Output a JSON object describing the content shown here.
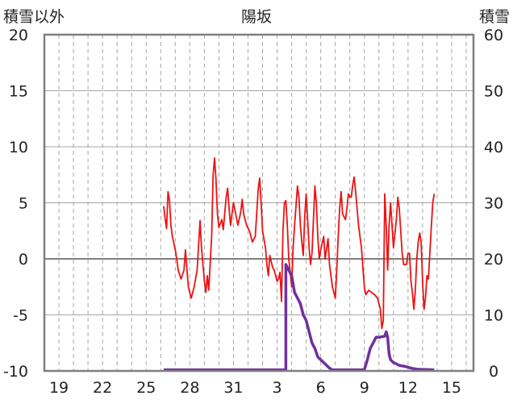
{
  "chart_data": {
    "type": "line",
    "title": "陽坂",
    "left_axis": {
      "label": "積雪以外",
      "range": [
        -10,
        20
      ],
      "ticks": [
        "20",
        "15",
        "10",
        "5",
        "0",
        "-5",
        "-10"
      ]
    },
    "right_axis": {
      "label": "積雪",
      "range": [
        0,
        60
      ],
      "ticks": [
        "60",
        "50",
        "40",
        "30",
        "20",
        "10",
        "0"
      ]
    },
    "x_ticks": [
      "19",
      "22",
      "25",
      "28",
      "31",
      "3",
      "6",
      "9",
      "12",
      "15"
    ],
    "x_tick_positions": [
      1,
      4,
      7,
      10,
      13,
      16,
      19,
      22,
      25,
      28
    ],
    "x_range": [
      0,
      29.5
    ],
    "grid": true,
    "series": [
      {
        "axis": "left",
        "color": "#ee1111",
        "points": [
          [
            8.2,
            4.7
          ],
          [
            8.3,
            3.6
          ],
          [
            8.4,
            2.7
          ],
          [
            8.5,
            6.0
          ],
          [
            8.6,
            5.2
          ],
          [
            8.7,
            3.0
          ],
          [
            8.8,
            2.0
          ],
          [
            9.0,
            0.8
          ],
          [
            9.1,
            0.0
          ],
          [
            9.2,
            -1.0
          ],
          [
            9.4,
            -1.8
          ],
          [
            9.6,
            -1.0
          ],
          [
            9.7,
            0.8
          ],
          [
            9.9,
            -2.5
          ],
          [
            10.1,
            -3.5
          ],
          [
            10.3,
            -2.5
          ],
          [
            10.5,
            -1.0
          ],
          [
            10.7,
            3.4
          ],
          [
            10.8,
            1.0
          ],
          [
            11.0,
            -2.0
          ],
          [
            11.1,
            -3.0
          ],
          [
            11.2,
            -1.5
          ],
          [
            11.3,
            -2.8
          ],
          [
            11.5,
            2.0
          ],
          [
            11.6,
            7.5
          ],
          [
            11.7,
            9.0
          ],
          [
            11.8,
            7.0
          ],
          [
            11.9,
            4.0
          ],
          [
            12.0,
            2.8
          ],
          [
            12.2,
            3.5
          ],
          [
            12.3,
            2.6
          ],
          [
            12.5,
            5.5
          ],
          [
            12.6,
            6.3
          ],
          [
            12.7,
            4.5
          ],
          [
            12.8,
            3.0
          ],
          [
            13.0,
            5.0
          ],
          [
            13.1,
            4.4
          ],
          [
            13.3,
            3.0
          ],
          [
            13.5,
            4.2
          ],
          [
            13.6,
            5.3
          ],
          [
            13.7,
            4.0
          ],
          [
            13.9,
            3.0
          ],
          [
            14.1,
            2.5
          ],
          [
            14.3,
            1.5
          ],
          [
            14.5,
            2.0
          ],
          [
            14.7,
            6.2
          ],
          [
            14.8,
            7.2
          ],
          [
            14.9,
            5.0
          ],
          [
            15.0,
            2.5
          ],
          [
            15.2,
            1.0
          ],
          [
            15.3,
            -0.5
          ],
          [
            15.4,
            -1.5
          ],
          [
            15.5,
            0.3
          ],
          [
            15.7,
            -0.8
          ],
          [
            15.8,
            -1.0
          ],
          [
            16.0,
            -2.0
          ],
          [
            16.1,
            -1.8
          ],
          [
            16.2,
            -1.2
          ],
          [
            16.3,
            -3.8
          ],
          [
            16.4,
            2.5
          ],
          [
            16.5,
            5.0
          ],
          [
            16.6,
            5.2
          ],
          [
            16.7,
            3.0
          ],
          [
            16.8,
            0.0
          ],
          [
            16.9,
            -1.2
          ],
          [
            17.0,
            -2.5
          ],
          [
            17.1,
            1.0
          ],
          [
            17.2,
            3.0
          ],
          [
            17.4,
            6.5
          ],
          [
            17.5,
            5.5
          ],
          [
            17.6,
            3.0
          ],
          [
            17.7,
            1.5
          ],
          [
            17.8,
            0.3
          ],
          [
            17.9,
            3.8
          ],
          [
            18.0,
            5.8
          ],
          [
            18.1,
            3.5
          ],
          [
            18.2,
            1.0
          ],
          [
            18.3,
            -0.5
          ],
          [
            18.4,
            0.5
          ],
          [
            18.5,
            3.5
          ],
          [
            18.6,
            6.5
          ],
          [
            18.7,
            5.0
          ],
          [
            18.8,
            2.0
          ],
          [
            18.9,
            0.0
          ],
          [
            19.0,
            0.8
          ],
          [
            19.2,
            2.0
          ],
          [
            19.3,
            0.0
          ],
          [
            19.5,
            1.8
          ],
          [
            19.6,
            -0.5
          ],
          [
            19.8,
            -2.5
          ],
          [
            20.0,
            -3.5
          ],
          [
            20.1,
            -1.0
          ],
          [
            20.2,
            2.0
          ],
          [
            20.3,
            4.5
          ],
          [
            20.4,
            6.0
          ],
          [
            20.5,
            4.0
          ],
          [
            20.7,
            3.5
          ],
          [
            20.8,
            4.5
          ],
          [
            20.9,
            5.8
          ],
          [
            21.0,
            5.5
          ],
          [
            21.1,
            5.5
          ],
          [
            21.2,
            6.6
          ],
          [
            21.3,
            7.3
          ],
          [
            21.4,
            6.0
          ],
          [
            21.6,
            3.0
          ],
          [
            21.8,
            1.0
          ],
          [
            22.0,
            -2.5
          ],
          [
            22.1,
            -3.2
          ],
          [
            22.3,
            -2.8
          ],
          [
            22.5,
            -3.0
          ],
          [
            22.7,
            -3.2
          ],
          [
            22.9,
            -3.5
          ],
          [
            23.1,
            -4.5
          ],
          [
            23.2,
            -6.2
          ],
          [
            23.3,
            -5.5
          ],
          [
            23.4,
            5.8
          ],
          [
            23.5,
            3.0
          ],
          [
            23.6,
            -1.0
          ],
          [
            23.7,
            3.0
          ],
          [
            23.8,
            5.0
          ],
          [
            23.9,
            3.0
          ],
          [
            24.0,
            1.0
          ],
          [
            24.2,
            3.5
          ],
          [
            24.3,
            5.5
          ],
          [
            24.4,
            4.5
          ],
          [
            24.5,
            2.5
          ],
          [
            24.6,
            0.5
          ],
          [
            24.7,
            -0.5
          ],
          [
            24.9,
            -0.5
          ],
          [
            25.0,
            0.5
          ],
          [
            25.1,
            0.5
          ],
          [
            25.2,
            -2.0
          ],
          [
            25.3,
            -3.0
          ],
          [
            25.4,
            -4.5
          ],
          [
            25.5,
            -2.8
          ],
          [
            25.6,
            0.0
          ],
          [
            25.7,
            1.5
          ],
          [
            25.8,
            2.3
          ],
          [
            25.9,
            1.5
          ],
          [
            26.0,
            -2.0
          ],
          [
            26.1,
            -4.5
          ],
          [
            26.2,
            -3.5
          ],
          [
            26.3,
            -1.5
          ],
          [
            26.4,
            -1.8
          ],
          [
            26.5,
            0.5
          ],
          [
            26.6,
            2.8
          ],
          [
            26.7,
            5.0
          ],
          [
            26.8,
            5.8
          ]
        ]
      },
      {
        "axis": "right",
        "color": "#7030a0",
        "points": [
          [
            8.2,
            0.2
          ],
          [
            16.6,
            0.2
          ],
          [
            16.6,
            19.0
          ],
          [
            16.8,
            18.0
          ],
          [
            17.0,
            17.0
          ],
          [
            17.1,
            15.5
          ],
          [
            17.2,
            14.0
          ],
          [
            17.4,
            13.0
          ],
          [
            17.6,
            12.0
          ],
          [
            17.8,
            10.0
          ],
          [
            18.0,
            9.0
          ],
          [
            18.2,
            7.0
          ],
          [
            18.4,
            5.0
          ],
          [
            18.6,
            4.0
          ],
          [
            18.8,
            2.5
          ],
          [
            19.0,
            2.0
          ],
          [
            19.2,
            1.5
          ],
          [
            19.4,
            1.0
          ],
          [
            19.6,
            0.5
          ],
          [
            19.8,
            0.2
          ],
          [
            22.0,
            0.2
          ],
          [
            22.2,
            2.0
          ],
          [
            22.4,
            4.0
          ],
          [
            22.6,
            5.0
          ],
          [
            22.8,
            6.0
          ],
          [
            23.0,
            6.0
          ],
          [
            23.4,
            6.2
          ],
          [
            23.5,
            7.0
          ],
          [
            23.6,
            6.0
          ],
          [
            23.7,
            3.0
          ],
          [
            23.8,
            2.0
          ],
          [
            24.0,
            1.5
          ],
          [
            24.4,
            1.0
          ],
          [
            24.8,
            0.8
          ],
          [
            25.2,
            0.5
          ],
          [
            25.6,
            0.3
          ],
          [
            26.8,
            0.2
          ]
        ]
      }
    ]
  }
}
